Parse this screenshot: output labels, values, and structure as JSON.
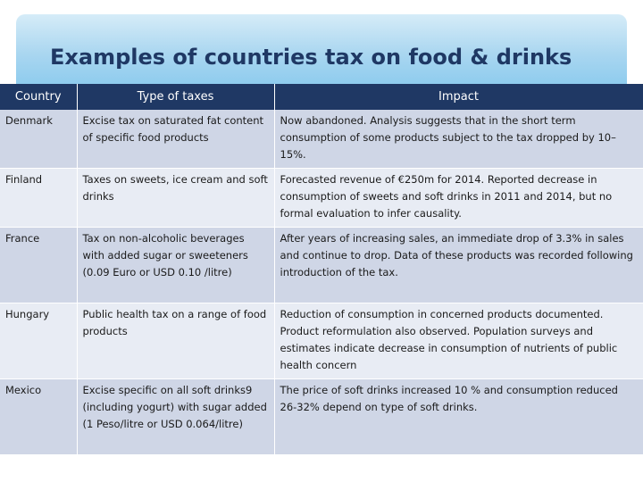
{
  "slide": {
    "title": "Examples of countries tax on food & drinks"
  },
  "table": {
    "headers": [
      "Country",
      "Type of taxes",
      "Impact"
    ],
    "rows": [
      {
        "country": "Denmark",
        "type": "Excise tax on saturated fat content of specific food products",
        "impact": "Now abandoned. Analysis suggests that in the short term consumption of some products subject to the tax dropped by 10–15%."
      },
      {
        "country": "Finland",
        "type": "Taxes on sweets, ice cream and soft drinks",
        "impact": "Forecasted revenue of €250m for 2014. Reported decrease in consumption of sweets and soft drinks in 2011 and 2014, but no formal evaluation to infer causality."
      },
      {
        "country": "France",
        "type": "Tax on non-alcoholic beverages with added sugar or sweeteners (0.09 Euro or USD 0.10 /litre)",
        "impact": "After years of increasing sales, an immediate drop of 3.3% in sales and continue to drop. Data of these products was recorded following introduction of the tax."
      },
      {
        "country": "Hungary",
        "type": "Public health tax on a range of food products",
        "impact": "Reduction of consumption in concerned products documented. Product reformulation also observed. Population surveys and estimates indicate decrease in consumption of nutrients of public health concern"
      },
      {
        "country": "Mexico",
        "type": "Excise specific on all soft drinks9 (including yogurt) with sugar added (1 Peso/litre or USD 0.064/litre)",
        "impact": "The price of soft drinks increased 10 % and consumption reduced 26-32% depend on type of soft drinks."
      }
    ]
  }
}
